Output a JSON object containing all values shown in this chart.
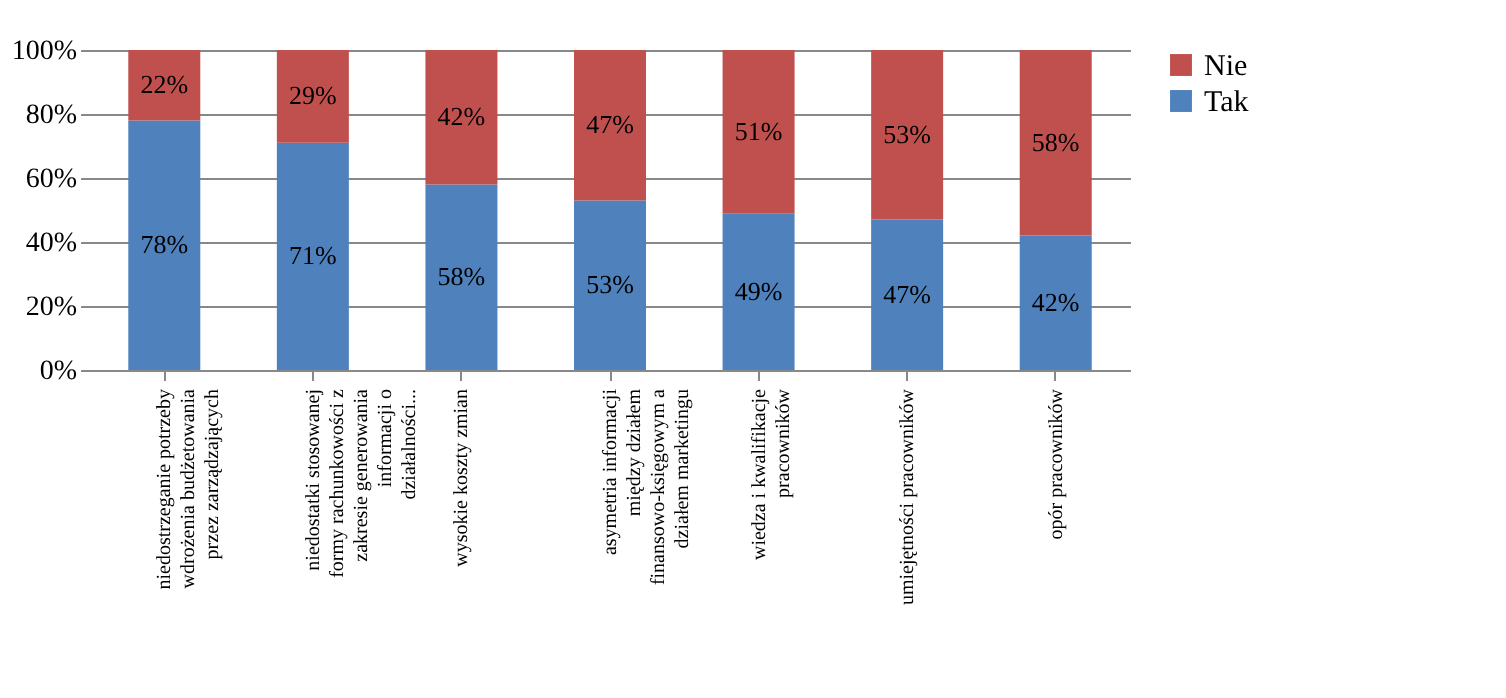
{
  "chart_data": {
    "type": "bar",
    "stacked": true,
    "categories": [
      "niedostrzeganie potrzeby wdrożenia budżetowania przez zarządzających",
      "niedostatki stosowanej formy rachunkowości z zakresie generowania informacji o działalności...",
      "wysokie koszty zmian",
      "asymetria informacji między działem finansowo-księgowym a działem marketingu",
      "wiedza i kwalifikacje pracowników",
      "umiejętności pracowników",
      "opór pracowników"
    ],
    "series": [
      {
        "name": "Tak",
        "color": "#4f81bd",
        "values": [
          78,
          71,
          58,
          53,
          49,
          47,
          42
        ],
        "value_labels": [
          "78%",
          "71%",
          "58%",
          "53%",
          "49%",
          "47%",
          "42%"
        ]
      },
      {
        "name": "Nie",
        "color": "#c0504d",
        "values": [
          22,
          29,
          42,
          47,
          51,
          53,
          58
        ],
        "value_labels": [
          "22%",
          "29%",
          "42%",
          "47%",
          "51%",
          "53%",
          "58%"
        ]
      }
    ],
    "ylim": [
      0,
      100
    ],
    "yticks": [
      {
        "value": 0,
        "label": "0%"
      },
      {
        "value": 20,
        "label": "20%"
      },
      {
        "value": 40,
        "label": "40%"
      },
      {
        "value": 60,
        "label": "60%"
      },
      {
        "value": 80,
        "label": "80%"
      },
      {
        "value": 100,
        "label": "100%"
      }
    ],
    "grid": "y",
    "legend": "right"
  }
}
